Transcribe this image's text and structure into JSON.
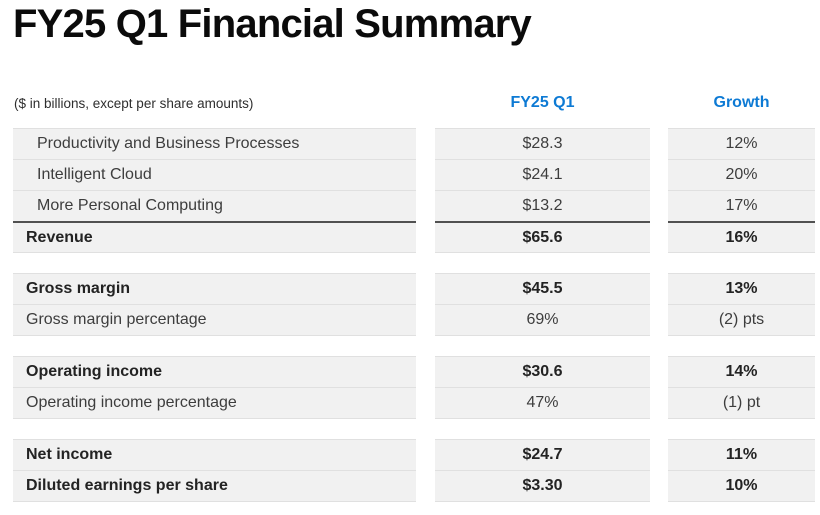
{
  "title": "FY25 Q1 Financial Summary",
  "note": "($ in billions, except per share amounts)",
  "headers": {
    "value": "FY25 Q1",
    "growth": "Growth"
  },
  "colors": {
    "accent_blue": "#0d7ad4",
    "cell_background": "#f1f1f1",
    "row_border": "#e0e0e0",
    "total_rule": "#515151",
    "text_regular": "#3d3d3d",
    "text_bold": "#232323"
  },
  "table": {
    "sections": [
      {
        "name": "revenue",
        "rows": [
          {
            "label": "Productivity and Business Processes",
            "value": "$28.3",
            "growth": "12%"
          },
          {
            "label": "Intelligent Cloud",
            "value": "$24.1",
            "growth": "20%"
          },
          {
            "label": "More Personal Computing",
            "value": "$13.2",
            "growth": "17%"
          },
          {
            "label": "Revenue",
            "value": "$65.6",
            "growth": "16%"
          }
        ]
      },
      {
        "name": "gross-margin",
        "rows": [
          {
            "label": "Gross margin",
            "value": "$45.5",
            "growth": "13%"
          },
          {
            "label": "Gross margin percentage",
            "value": "69%",
            "growth": "(2) pts"
          }
        ]
      },
      {
        "name": "operating-income",
        "rows": [
          {
            "label": "Operating income",
            "value": "$30.6",
            "growth": "14%"
          },
          {
            "label": "Operating income percentage",
            "value": "47%",
            "growth": "(1) pt"
          }
        ]
      },
      {
        "name": "net-income",
        "rows": [
          {
            "label": "Net income",
            "value": "$24.7",
            "growth": "11%"
          },
          {
            "label": "Diluted earnings per share",
            "value": "$3.30",
            "growth": "10%"
          }
        ]
      }
    ]
  }
}
